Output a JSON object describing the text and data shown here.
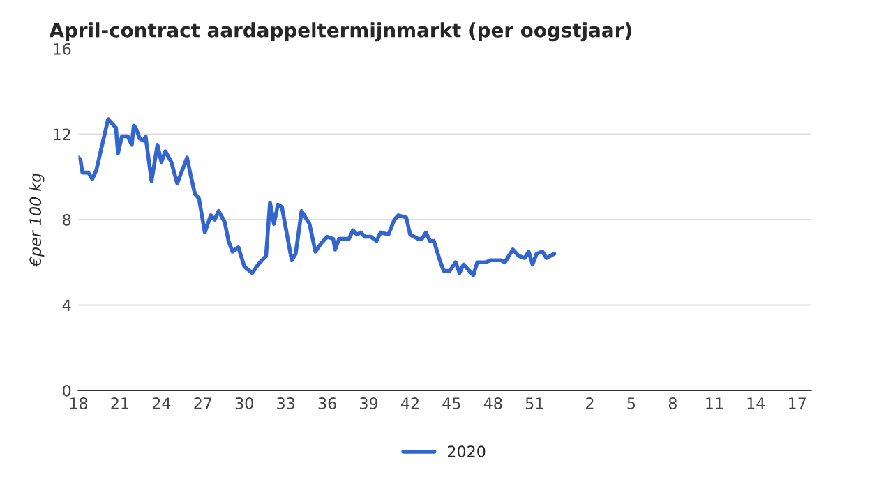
{
  "chart_data": {
    "type": "line",
    "title": "April-contract aardappeltermijnmarkt (per oogstjaar)",
    "ylabel": "€per 100 kg",
    "series": [
      {
        "name": "2020",
        "color": "#3366cc",
        "x": [
          "2020-04-27",
          "2020-04-28",
          "2020-04-29",
          "2020-05-02",
          "2020-05-04",
          "2020-05-06",
          "2020-05-12",
          "2020-05-16",
          "2020-05-17",
          "2020-05-19",
          "2020-05-22",
          "2020-05-24",
          "2020-05-25",
          "2020-05-26",
          "2020-05-28",
          "2020-05-30",
          "2020-05-31",
          "2020-06-01",
          "2020-06-03",
          "2020-06-06",
          "2020-06-08",
          "2020-06-10",
          "2020-06-13",
          "2020-06-16",
          "2020-06-21",
          "2020-06-23",
          "2020-06-25",
          "2020-06-27",
          "2020-06-30",
          "2020-07-03",
          "2020-07-05",
          "2020-07-07",
          "2020-07-10",
          "2020-07-12",
          "2020-07-14",
          "2020-07-17",
          "2020-07-20",
          "2020-07-24",
          "2020-07-27",
          "2020-07-31",
          "2020-08-02",
          "2020-08-04",
          "2020-08-06",
          "2020-08-08",
          "2020-08-13",
          "2020-08-15",
          "2020-08-18",
          "2020-08-22",
          "2020-08-25",
          "2020-08-28",
          "2020-08-31",
          "2020-09-03",
          "2020-09-04",
          "2020-09-06",
          "2020-09-11",
          "2020-09-13",
          "2020-09-15",
          "2020-09-17",
          "2020-09-19",
          "2020-09-22",
          "2020-09-25",
          "2020-09-27",
          "2020-10-01",
          "2020-10-04",
          "2020-10-06",
          "2020-10-10",
          "2020-10-12",
          "2020-10-16",
          "2020-10-18",
          "2020-10-20",
          "2020-10-22",
          "2020-10-24",
          "2020-10-27",
          "2020-10-29",
          "2020-11-01",
          "2020-11-04",
          "2020-11-06",
          "2020-11-08",
          "2020-11-11",
          "2020-11-13",
          "2020-11-15",
          "2020-11-19",
          "2020-11-22",
          "2020-11-27",
          "2020-11-29",
          "2020-12-03",
          "2020-12-06",
          "2020-12-09",
          "2020-12-11",
          "2020-12-13",
          "2020-12-15",
          "2020-12-18",
          "2020-12-20",
          "2020-12-24"
        ],
        "values": [
          10.9,
          10.8,
          10.2,
          10.2,
          9.9,
          10.3,
          12.7,
          12.3,
          11.1,
          11.9,
          11.9,
          11.5,
          12.4,
          12.3,
          11.8,
          11.7,
          11.9,
          11.2,
          9.8,
          11.5,
          10.7,
          11.2,
          10.7,
          9.7,
          10.9,
          10.0,
          9.2,
          9.0,
          7.4,
          8.2,
          8.0,
          8.4,
          7.9,
          7.0,
          6.5,
          6.7,
          5.8,
          5.5,
          5.9,
          6.3,
          8.8,
          7.8,
          8.7,
          8.6,
          6.1,
          6.4,
          8.4,
          7.8,
          6.5,
          6.9,
          7.2,
          7.1,
          6.6,
          7.1,
          7.1,
          7.5,
          7.3,
          7.4,
          7.2,
          7.2,
          7.0,
          7.4,
          7.3,
          8.0,
          8.2,
          8.1,
          7.3,
          7.1,
          7.1,
          7.4,
          7.0,
          7.0,
          6.1,
          5.6,
          5.6,
          6.0,
          5.5,
          5.9,
          5.6,
          5.4,
          6.0,
          6.0,
          6.1,
          6.1,
          6.0,
          6.6,
          6.3,
          6.2,
          6.5,
          5.9,
          6.4,
          6.5,
          6.2,
          6.4
        ]
      }
    ],
    "xlim": [
      "2020-04-27",
      "2021-05-03"
    ],
    "xticks": [
      {
        "value": "2020-04-27",
        "label": "18"
      },
      {
        "value": "2020-05-18",
        "label": "21"
      },
      {
        "value": "2020-06-08",
        "label": "24"
      },
      {
        "value": "2020-06-29",
        "label": "27"
      },
      {
        "value": "2020-07-20",
        "label": "30"
      },
      {
        "value": "2020-08-10",
        "label": "33"
      },
      {
        "value": "2020-08-31",
        "label": "36"
      },
      {
        "value": "2020-09-21",
        "label": "39"
      },
      {
        "value": "2020-10-12",
        "label": "42"
      },
      {
        "value": "2020-11-02",
        "label": "45"
      },
      {
        "value": "2020-11-23",
        "label": "48"
      },
      {
        "value": "2020-12-14",
        "label": "51"
      },
      {
        "value": "2021-01-11",
        "label": "2"
      },
      {
        "value": "2021-02-01",
        "label": "5"
      },
      {
        "value": "2021-02-22",
        "label": "8"
      },
      {
        "value": "2021-03-15",
        "label": "11"
      },
      {
        "value": "2021-04-05",
        "label": "14"
      },
      {
        "value": "2021-04-26",
        "label": "17"
      }
    ],
    "ylim": [
      0,
      16
    ],
    "yticks": [
      0,
      4,
      8,
      12,
      16
    ],
    "grid": "y",
    "legend": "bottom",
    "marker": "none",
    "line_style": "solid"
  }
}
